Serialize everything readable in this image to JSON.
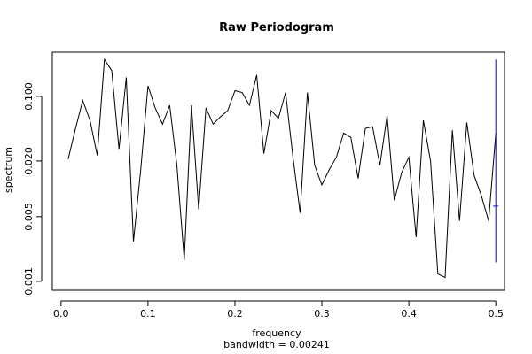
{
  "chart_data": {
    "type": "line",
    "title": "Raw Periodogram",
    "xlabel": "frequency",
    "subxlabel": "bandwidth = 0.00241",
    "ylabel": "spectrum",
    "xlim": [
      -0.01,
      0.51
    ],
    "ylim": [
      0.0008,
      0.3
    ],
    "y_scale": "log",
    "x_ticks": [
      0.0,
      0.1,
      0.2,
      0.3,
      0.4,
      0.5
    ],
    "x_tick_labels": [
      "0.0",
      "0.1",
      "0.2",
      "0.3",
      "0.4",
      "0.5"
    ],
    "y_ticks": [
      0.001,
      0.005,
      0.02,
      0.1
    ],
    "y_tick_labels": [
      "0.001",
      "0.005",
      "0.020",
      "0.100"
    ],
    "series": [
      {
        "color": "#000000",
        "x": [
          0.0083,
          0.0167,
          0.025,
          0.0333,
          0.0417,
          0.05,
          0.0583,
          0.0667,
          0.075,
          0.0833,
          0.0917,
          0.1,
          0.1083,
          0.1167,
          0.125,
          0.1333,
          0.1417,
          0.15,
          0.1583,
          0.1667,
          0.175,
          0.1833,
          0.1917,
          0.2,
          0.2083,
          0.2167,
          0.225,
          0.2333,
          0.2417,
          0.25,
          0.2583,
          0.2667,
          0.275,
          0.2833,
          0.2917,
          0.3,
          0.3083,
          0.3167,
          0.325,
          0.3333,
          0.3417,
          0.35,
          0.3583,
          0.3667,
          0.375,
          0.3833,
          0.3917,
          0.4,
          0.4083,
          0.4167,
          0.425,
          0.4333,
          0.4417,
          0.45,
          0.4583,
          0.4667,
          0.475,
          0.4833,
          0.4917,
          0.5
        ],
        "y": [
          0.021,
          0.045,
          0.09,
          0.055,
          0.023,
          0.25,
          0.19,
          0.027,
          0.16,
          0.0027,
          0.016,
          0.13,
          0.075,
          0.05,
          0.08,
          0.018,
          0.0017,
          0.08,
          0.006,
          0.075,
          0.05,
          0.06,
          0.07,
          0.115,
          0.11,
          0.08,
          0.17,
          0.024,
          0.07,
          0.058,
          0.11,
          0.022,
          0.0055,
          0.11,
          0.018,
          0.011,
          0.016,
          0.022,
          0.04,
          0.036,
          0.013,
          0.045,
          0.047,
          0.018,
          0.062,
          0.0075,
          0.015,
          0.022,
          0.003,
          0.055,
          0.02,
          0.0012,
          0.0011,
          0.043,
          0.0045,
          0.052,
          0.014,
          0.0085,
          0.0045,
          0.04
        ]
      }
    ],
    "error_bar": {
      "color": "#0000cc",
      "x": 0.5,
      "center": 0.0065,
      "lower": 0.0016,
      "upper": 0.25
    }
  }
}
